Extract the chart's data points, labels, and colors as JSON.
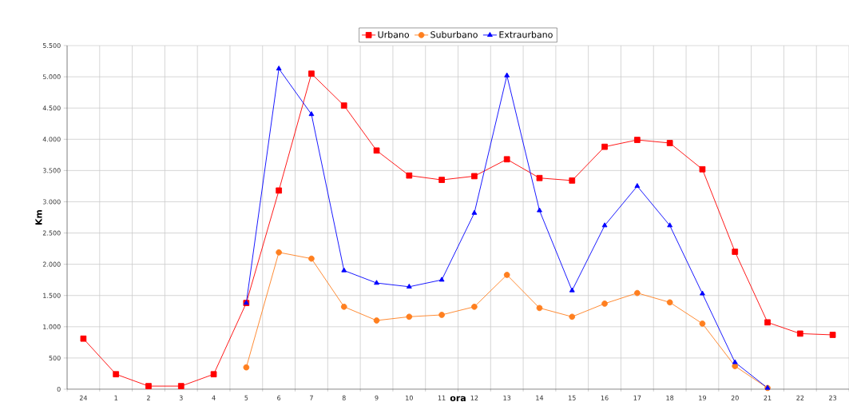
{
  "chart_data": {
    "type": "line",
    "xlabel": "ora",
    "ylabel": "Km",
    "categories": [
      "24",
      "1",
      "2",
      "3",
      "4",
      "5",
      "6",
      "7",
      "8",
      "9",
      "10",
      "11",
      "12",
      "13",
      "14",
      "15",
      "16",
      "17",
      "18",
      "19",
      "20",
      "21",
      "22",
      "23"
    ],
    "series": [
      {
        "name": "Urbano",
        "color": "#ff0000",
        "marker": "square",
        "values": [
          810,
          240,
          50,
          50,
          240,
          1380,
          3180,
          5050,
          4540,
          3820,
          3420,
          3350,
          3410,
          3680,
          3380,
          3340,
          3880,
          3990,
          3940,
          3520,
          2200,
          1070,
          890,
          870
        ]
      },
      {
        "name": "Suburbano",
        "color": "#ff7f1f",
        "marker": "circle",
        "values": [
          null,
          null,
          null,
          null,
          null,
          350,
          2190,
          2090,
          1320,
          1100,
          1160,
          1190,
          1320,
          1830,
          1300,
          1160,
          1370,
          1540,
          1390,
          1050,
          370,
          20,
          null,
          null
        ]
      },
      {
        "name": "Extraurbano",
        "color": "#0000ff",
        "marker": "triangle",
        "values": [
          null,
          null,
          null,
          null,
          null,
          1380,
          5130,
          4400,
          1900,
          1700,
          1640,
          1750,
          2820,
          5020,
          2860,
          1580,
          2620,
          3250,
          2620,
          1530,
          430,
          20,
          null,
          null
        ]
      }
    ],
    "ylim": [
      0,
      5500
    ],
    "yticks": [
      0,
      500,
      {
        "value": 1000,
        "label": "1.000"
      },
      {
        "value": 1500,
        "label": "1.500"
      },
      {
        "value": 2000,
        "label": "2.000"
      },
      {
        "value": 2500,
        "label": "2.500"
      },
      {
        "value": 3000,
        "label": "3.000"
      },
      {
        "value": 3500,
        "label": "3.500"
      },
      {
        "value": 4000,
        "label": "4.000"
      },
      {
        "value": 4500,
        "label": "4.500"
      },
      {
        "value": 5000,
        "label": "5.000"
      },
      {
        "value": 5500,
        "label": "5.500"
      }
    ],
    "grid": true,
    "legend": "top",
    "line_style": "solid"
  }
}
